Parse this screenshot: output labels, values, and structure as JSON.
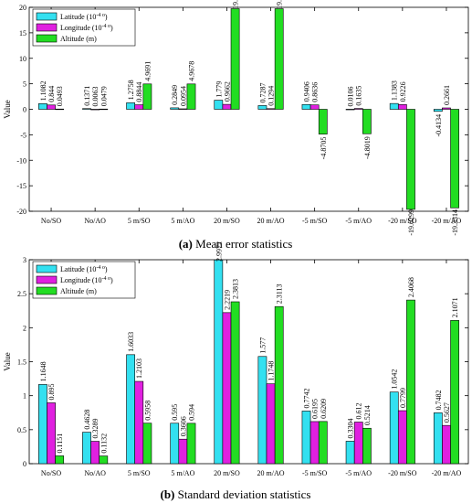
{
  "chart_data": [
    {
      "type": "bar",
      "caption_tag": "(a)",
      "caption_text": "Mean error statistics",
      "ylabel": "Value",
      "xlabel": "",
      "ylim": [
        -20,
        20
      ],
      "yticks": [
        -20,
        -15,
        -10,
        -5,
        0,
        5,
        10,
        15,
        20
      ],
      "categories": [
        "No/SO",
        "No/AO",
        "5 m/SO",
        "5 m/AO",
        "20 m/SO",
        "20 m/AO",
        "-5 m/SO",
        "-5 m/AO",
        "-20 m/SO",
        "-20 m/AO"
      ],
      "series": [
        {
          "name": "Latitude (10⁻⁴ °)",
          "color": "#33e0f0",
          "values": [
            1.1082,
            0.1371,
            1.2758,
            0.2849,
            1.779,
            0.7287,
            0.9406,
            0.0106,
            1.1383,
            -0.4134
          ],
          "labels": [
            "1.1082",
            "0.1371",
            "1.2758",
            "0.2849",
            "1.779",
            "0.7287",
            "0.9406",
            "0.0106",
            "1.1383",
            "-0.4134"
          ]
        },
        {
          "name": "Longitude (10⁻⁴ °)",
          "color": "#e020e0",
          "values": [
            0.844,
            0.0063,
            0.8844,
            0.0954,
            0.9662,
            0.1294,
            0.8636,
            0.1635,
            0.9226,
            0.2661
          ],
          "labels": [
            "0.844",
            "0.0063",
            "0.8844",
            "0.0954",
            "0.9662",
            "0.1294",
            "0.8636",
            "0.1635",
            "0.9226",
            "0.2661"
          ]
        },
        {
          "name": "Altitude (m)",
          "color": "#22dd22",
          "values": [
            0.0493,
            0.0479,
            4.9691,
            4.9678,
            19.7285,
            19.7273,
            -4.8705,
            -4.8019,
            -19.6299,
            -19.3314
          ],
          "labels": [
            "0.0493",
            "0.0479",
            "4.9691",
            "4.9678",
            "19.7285",
            "19.7273",
            "-4.8705",
            "-4.8019",
            "-19.6299",
            "-19.3314"
          ]
        }
      ],
      "legend": "top-left",
      "grid": false
    },
    {
      "type": "bar",
      "caption_tag": "(b)",
      "caption_text": "Standard deviation statistics",
      "ylabel": "Value",
      "xlabel": "",
      "ylim": [
        0,
        3
      ],
      "yticks": [
        0,
        0.5,
        1,
        1.5,
        2,
        2.5,
        3
      ],
      "categories": [
        "No/SO",
        "No/AO",
        "5 m/SO",
        "5 m/AO",
        "20 m/SO",
        "20 m/AO",
        "-5 m/SO",
        "-5 m/AO",
        "-20 m/SO",
        "-20 m/AO"
      ],
      "series": [
        {
          "name": "Latitude (10⁻⁴ °)",
          "color": "#33e0f0",
          "values": [
            1.1648,
            0.4628,
            1.6033,
            0.595,
            2.9972,
            1.577,
            0.7742,
            0.3304,
            1.0542,
            0.7482
          ],
          "labels": [
            "1.1648",
            "0.4628",
            "1.6033",
            "0.595",
            "2.9972",
            "1.577",
            "0.7742",
            "0.3304",
            "1.0542",
            "0.7482"
          ]
        },
        {
          "name": "Longitude (10⁻⁴ °)",
          "color": "#e020e0",
          "values": [
            0.895,
            0.3289,
            1.2103,
            0.3606,
            2.2219,
            1.1748,
            0.6195,
            0.612,
            0.7799,
            0.5627
          ],
          "labels": [
            "0.895",
            "0.3289",
            "1.2103",
            "0.3606",
            "2.2219",
            "1.1748",
            "0.6195",
            "0.612",
            "0.7799",
            "0.5627"
          ]
        },
        {
          "name": "Altitude (m)",
          "color": "#22dd22",
          "values": [
            0.1151,
            0.1132,
            0.5958,
            0.594,
            2.3813,
            2.3113,
            0.6209,
            0.5214,
            2.4068,
            2.1071
          ],
          "labels": [
            "0.1151",
            "0.1132",
            "0.5958",
            "0.594",
            "2.3813",
            "2.3113",
            "0.6209",
            "0.5214",
            "2.4068",
            "2.1071"
          ]
        }
      ],
      "legend": "top-left",
      "grid": false
    }
  ]
}
